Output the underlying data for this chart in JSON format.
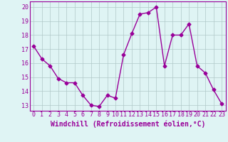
{
  "x": [
    0,
    1,
    2,
    3,
    4,
    5,
    6,
    7,
    8,
    9,
    10,
    11,
    12,
    13,
    14,
    15,
    16,
    17,
    18,
    19,
    20,
    21,
    22,
    23
  ],
  "y": [
    17.2,
    16.3,
    15.8,
    14.9,
    14.6,
    14.6,
    13.7,
    13.0,
    12.9,
    13.7,
    13.5,
    16.6,
    18.1,
    19.5,
    19.6,
    20.0,
    15.8,
    18.0,
    18.0,
    18.8,
    15.8,
    15.3,
    14.1,
    13.1
  ],
  "line_color": "#990099",
  "marker": "D",
  "markersize": 2.5,
  "linewidth": 1.0,
  "bg_color": "#dff4f4",
  "grid_color": "#b0c8c8",
  "xlabel": "Windchill (Refroidissement éolien,°C)",
  "xlabel_fontsize": 7,
  "tick_fontsize": 6,
  "yticks": [
    13,
    14,
    15,
    16,
    17,
    18,
    19,
    20
  ],
  "xticks": [
    0,
    1,
    2,
    3,
    4,
    5,
    6,
    7,
    8,
    9,
    10,
    11,
    12,
    13,
    14,
    15,
    16,
    17,
    18,
    19,
    20,
    21,
    22,
    23
  ],
  "ylim": [
    12.6,
    20.4
  ],
  "xlim": [
    -0.5,
    23.5
  ]
}
